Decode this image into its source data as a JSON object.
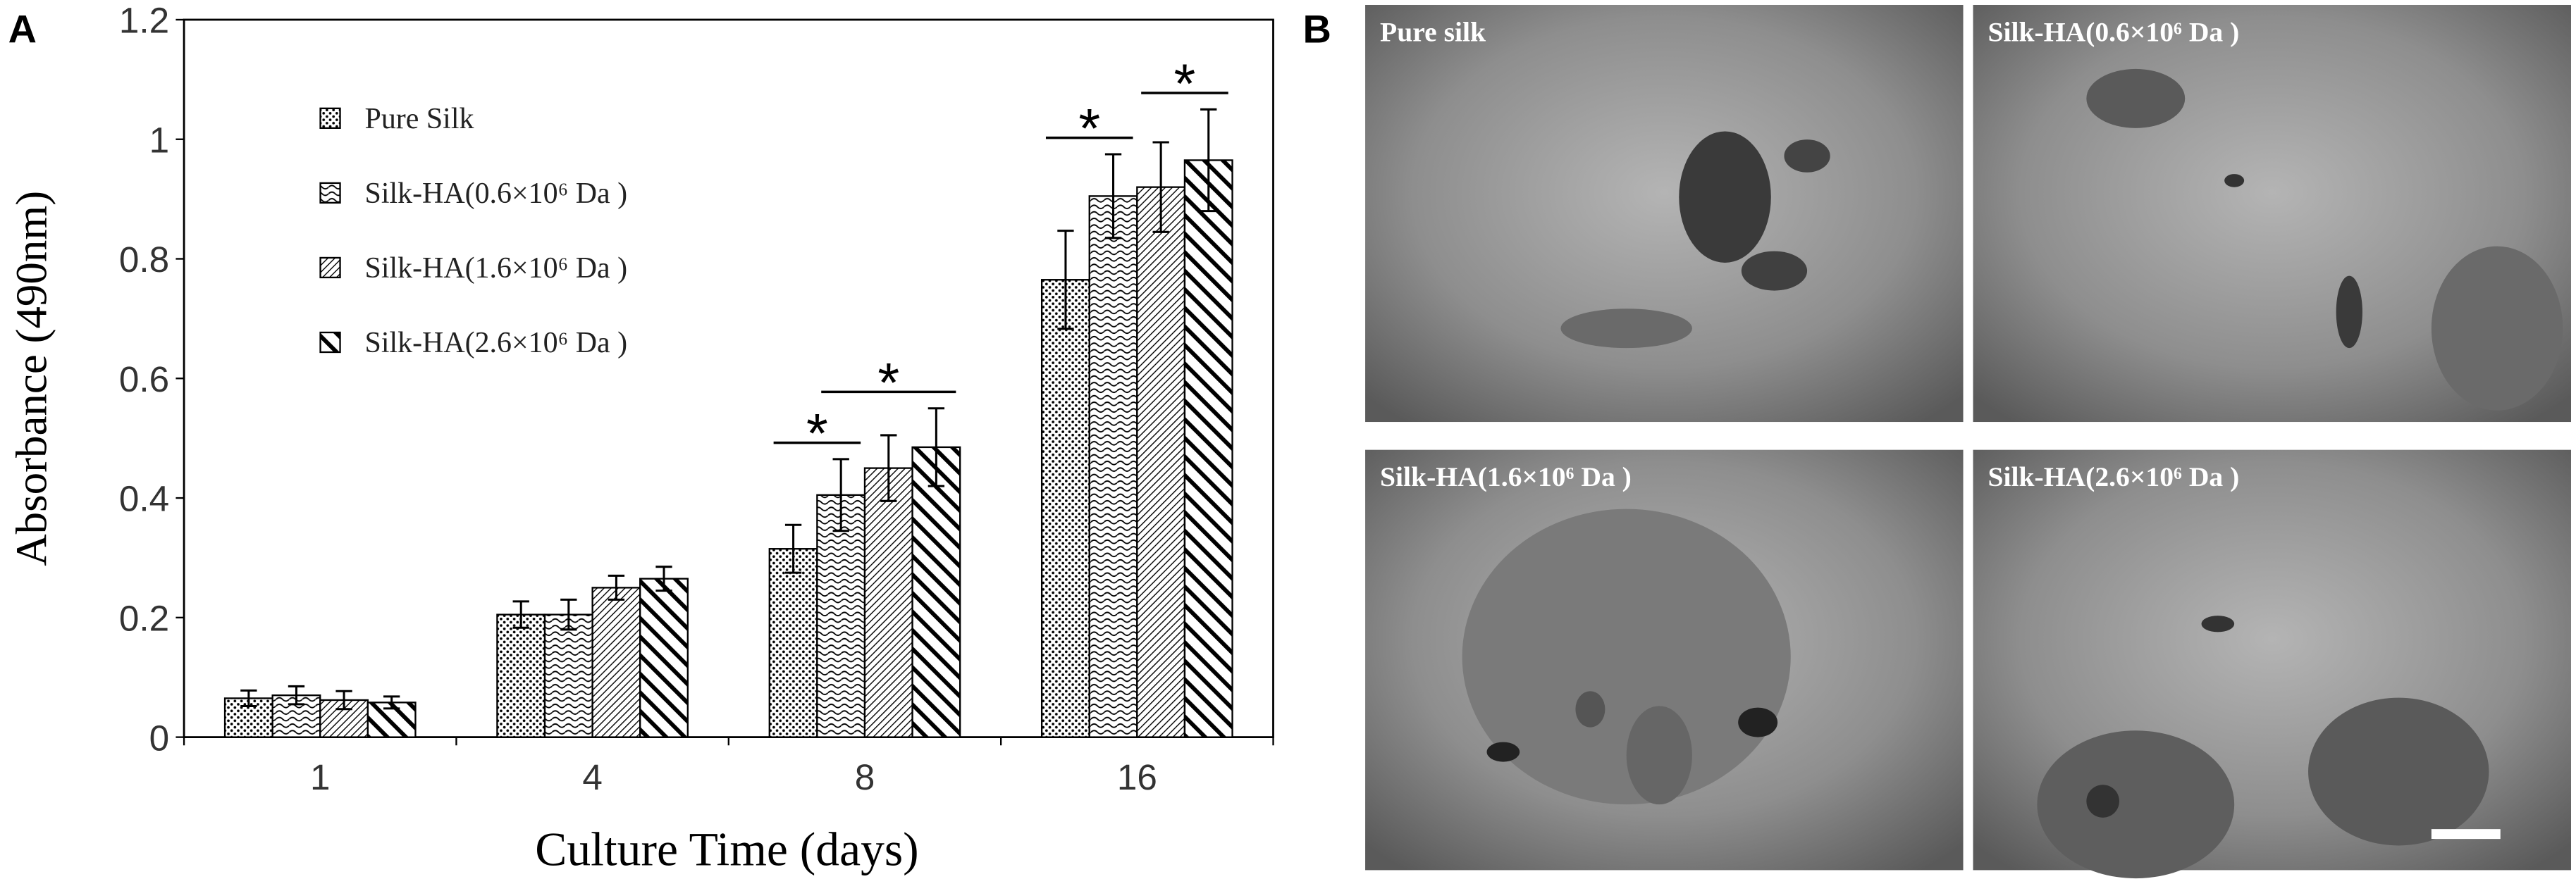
{
  "chart_data": {
    "type": "bar",
    "panel_label": "A",
    "x_label": "Culture Time (days)",
    "y_label": "Absorbance (490nm)",
    "categories": [
      "1",
      "4",
      "8",
      "16"
    ],
    "series": [
      {
        "name": "Pure Silk",
        "color": "#000000",
        "pattern": "dots",
        "values": [
          0.065,
          0.205,
          0.315,
          0.765
        ],
        "errors": [
          0.013,
          0.022,
          0.04,
          0.082
        ]
      },
      {
        "name": "Silk-HA(0.6×10⁶ Da )",
        "color": "#000000",
        "pattern": "waves",
        "values": [
          0.07,
          0.205,
          0.405,
          0.905
        ],
        "errors": [
          0.015,
          0.025,
          0.06,
          0.07
        ]
      },
      {
        "name": "Silk-HA(1.6×10⁶ Da )",
        "color": "#000000",
        "pattern": "hatch",
        "values": [
          0.062,
          0.25,
          0.45,
          0.92
        ],
        "errors": [
          0.015,
          0.02,
          0.055,
          0.075
        ]
      },
      {
        "name": "Silk-HA(2.6×10⁶ Da )",
        "color": "#000000",
        "pattern": "stripes",
        "values": [
          0.058,
          0.265,
          0.485,
          0.965
        ],
        "errors": [
          0.01,
          0.02,
          0.065,
          0.085
        ]
      }
    ],
    "annotations": [
      "*",
      "*",
      "*",
      "*"
    ],
    "ylim": [
      0,
      1.2
    ],
    "yticks": [
      0,
      0.2,
      0.4,
      0.6,
      0.8,
      1,
      1.2
    ],
    "grid": false
  },
  "panel_b": {
    "label": "B",
    "images": [
      "Pure silk",
      "Silk-HA(1.6×10⁶ Da )",
      "Silk-HA(0.6×10⁶ Da )",
      "Silk-HA(2.6×10⁶ Da )"
    ]
  }
}
